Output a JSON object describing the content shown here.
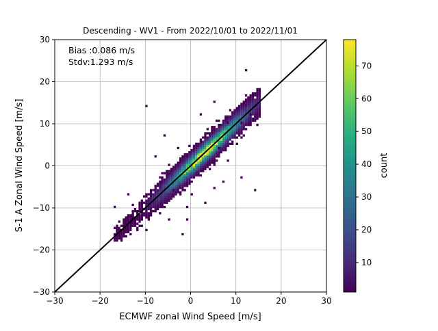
{
  "chart_data": {
    "type": "heatmap",
    "title": "Descending - WV1 - From 2022/10/01 to 2022/11/01",
    "xlabel": "ECMWF zonal Wind Speed [m/s]",
    "ylabel": "S-1 A Zonal Wind Speed [m/s]",
    "xlim": [
      -30,
      30
    ],
    "ylim": [
      -30,
      30
    ],
    "xticks": [
      "−30",
      "−20",
      "−10",
      "0",
      "10",
      "20",
      "30"
    ],
    "yticks": [
      "−30",
      "−20",
      "−10",
      "0",
      "10",
      "20",
      "30"
    ],
    "grid": true,
    "annotations": [
      "Bias :0.086 m/s",
      "Stdv:1.293 m/s"
    ],
    "reference_line": {
      "from": [
        -30,
        -30
      ],
      "to": [
        30,
        30
      ],
      "color": "#000000"
    },
    "bin_size": 0.5,
    "density_model": {
      "x_range": [
        -17,
        15
      ],
      "center_x": 3,
      "spread_along": 5.5,
      "spread_across": 1.3,
      "peak_count": 78
    },
    "outliers": [
      [
        -10,
        14
      ],
      [
        12,
        22.5
      ],
      [
        15,
        18
      ],
      [
        -2,
        -16.5
      ],
      [
        -1,
        -13
      ],
      [
        -10,
        -15.5
      ],
      [
        -17,
        -10
      ],
      [
        5,
        -5.5
      ],
      [
        7,
        -4
      ],
      [
        11,
        -3
      ],
      [
        14,
        -6
      ],
      [
        -6,
        7
      ],
      [
        -3,
        4
      ],
      [
        -14,
        -7
      ],
      [
        -5,
        -13
      ],
      [
        -1,
        -10
      ],
      [
        -4,
        -6
      ],
      [
        0,
        -7
      ],
      [
        3,
        -9
      ],
      [
        2,
        12
      ],
      [
        8,
        10
      ],
      [
        6,
        4
      ],
      [
        10,
        5
      ],
      [
        -8,
        2
      ],
      [
        -12,
        -11
      ],
      [
        11,
        10
      ],
      [
        13,
        12
      ],
      [
        -1,
        2
      ],
      [
        5,
        15
      ],
      [
        -5,
        0
      ],
      [
        8,
        1
      ]
    ],
    "colorbar": {
      "label": "count",
      "min": 1,
      "max": 78,
      "ticks": [
        "10",
        "20",
        "30",
        "40",
        "50",
        "60",
        "70"
      ],
      "colormap": "viridis"
    }
  }
}
